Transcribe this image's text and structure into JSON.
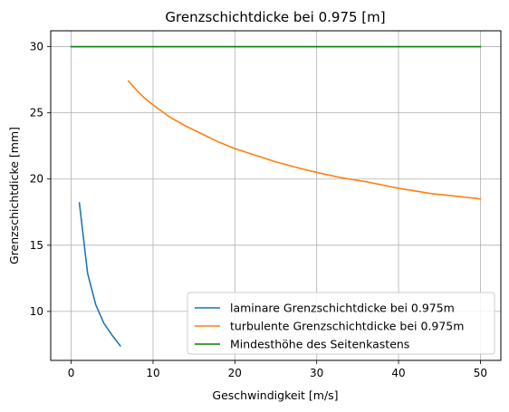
{
  "chart_data": {
    "type": "line",
    "title": "Grenzschichtdicke bei 0.975 [m]",
    "xlabel": "Geschwindigkeit [m/s]",
    "ylabel": "Grenzschichtdicke [mm]",
    "xlim": [
      -2.5,
      52.5
    ],
    "ylim": [
      6.3,
      31.2
    ],
    "x_ticks": [
      0,
      10,
      20,
      30,
      40,
      50
    ],
    "y_ticks": [
      10,
      15,
      20,
      25,
      30
    ],
    "grid": true,
    "legend_position": "lower-right",
    "series": [
      {
        "name": "laminare Grenzschichtdicke bei 0.975m",
        "color": "#1f77b4",
        "x": [
          1,
          2,
          3,
          4,
          5,
          6
        ],
        "y": [
          18.2,
          12.9,
          10.5,
          9.1,
          8.2,
          7.4
        ]
      },
      {
        "name": "turbulente Grenzschichtdicke bei 0.975m",
        "color": "#ff7f0e",
        "x": [
          7,
          8,
          9,
          10,
          12,
          14,
          16,
          18,
          20,
          22,
          25,
          28,
          30,
          33,
          36,
          40,
          44,
          47,
          50
        ],
        "y": [
          27.4,
          26.7,
          26.1,
          25.6,
          24.7,
          24.0,
          23.4,
          22.8,
          22.3,
          21.9,
          21.3,
          20.8,
          20.5,
          20.1,
          19.8,
          19.3,
          18.9,
          18.7,
          18.5
        ]
      },
      {
        "name": "Mindesthöhe des Seitenkastens",
        "color": "#008000",
        "x": [
          0,
          50
        ],
        "y": [
          30,
          30
        ]
      }
    ]
  }
}
